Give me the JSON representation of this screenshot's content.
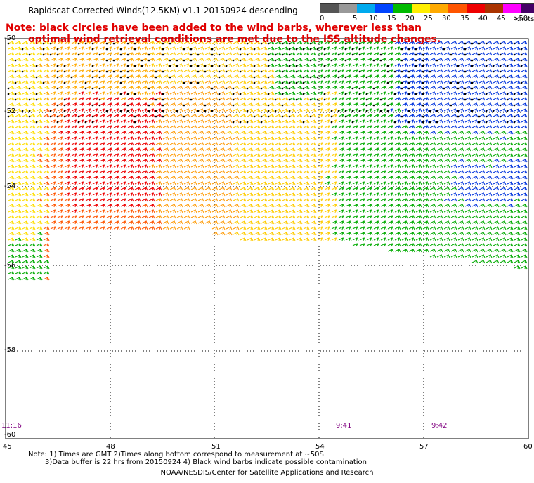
{
  "header": {
    "title": "Rapidscat Corrected Winds(12.5KM) v1.1 20150924 descending",
    "note_line1": "Note: black circles have been added to the wind barbs, wherever less than",
    "note_line2": "optimal wind retrieval conditions are met due to the ISS altitude changes."
  },
  "legend": {
    "unit": "knots",
    "colors": [
      "#555555",
      "#999999",
      "#00aaee",
      "#0044ff",
      "#00bb00",
      "#ffee00",
      "#ffaa00",
      "#ff5500",
      "#ee0000",
      "#aa3300",
      "#ff00ff",
      "#440066"
    ],
    "labels": [
      "0",
      "5",
      "10",
      "15",
      "20",
      "25",
      "30",
      "35",
      "40",
      "45",
      ">50"
    ]
  },
  "axes": {
    "lat_labels": [
      "-50",
      "-52",
      "-54",
      "-56",
      "-58",
      "-60"
    ],
    "lon_labels": [
      "45",
      "48",
      "51",
      "54",
      "57",
      "60"
    ]
  },
  "times": [
    "11:16",
    "9:41",
    "9:42"
  ],
  "footer": {
    "line1": "Note: 1) Times are GMT 2)Times along bottom correspond to measurement at ~50S",
    "line2": "3)Data buffer is 22 hrs from 20150924 4) Black wind barbs indicate possible contamination",
    "credit": "NOAA/NESDIS/Center for Satellite Applications and Research"
  }
}
